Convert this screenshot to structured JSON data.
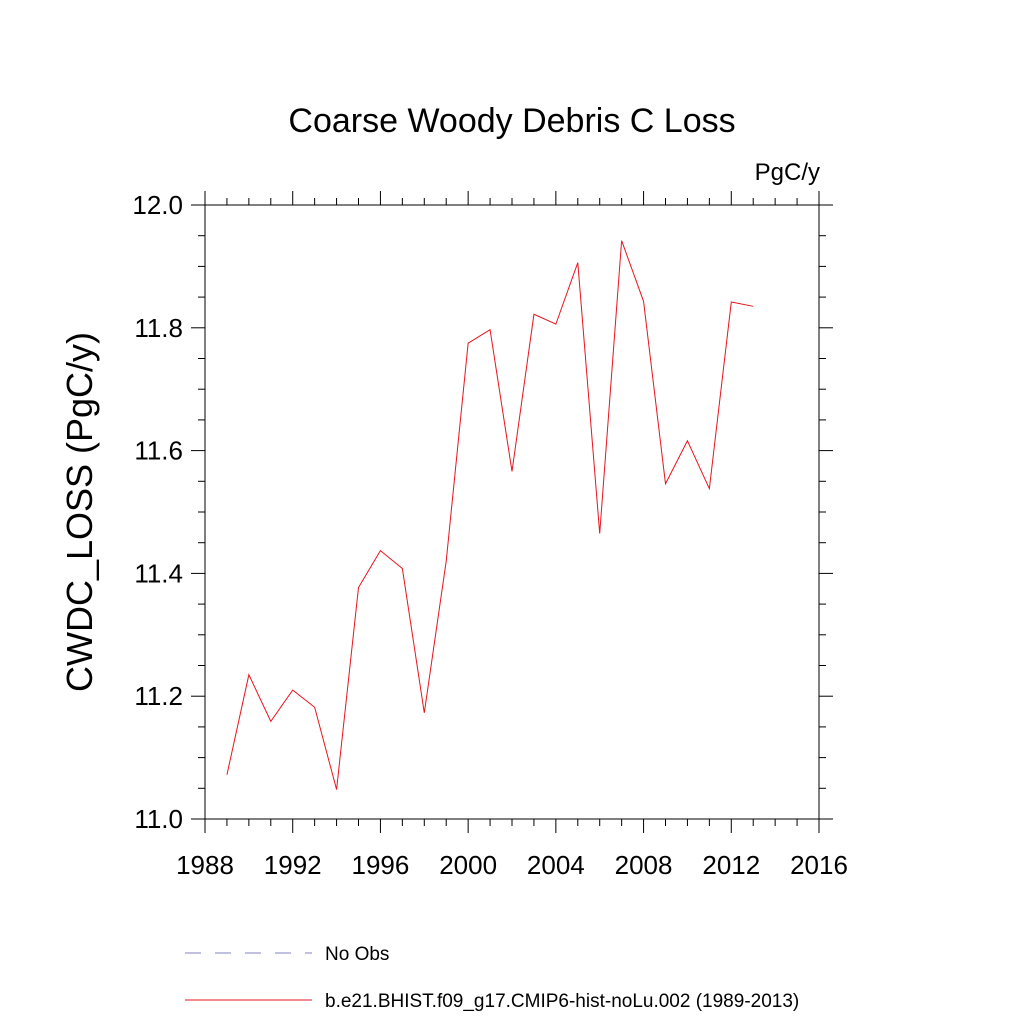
{
  "chart_data": {
    "type": "line",
    "title": "Coarse Woody Debris C Loss",
    "units": "PgC/y",
    "xlabel": "",
    "ylabel": "CWDC_LOSS  (PgC/y)",
    "xlim": [
      1988,
      2016
    ],
    "ylim": [
      11.0,
      12.0
    ],
    "xticks": [
      1988,
      1992,
      1996,
      2000,
      2004,
      2008,
      2012,
      2016
    ],
    "yticks": [
      "11.0",
      "11.2",
      "11.4",
      "11.6",
      "11.8",
      "12.0"
    ],
    "series": [
      {
        "name": "b.e21.BHIST.f09_g17.CMIP6-hist-noLu.002 (1989-2013)",
        "color": "#e8141e",
        "x": [
          1989,
          1990,
          1991,
          1992,
          1993,
          1994,
          1995,
          1996,
          1997,
          1998,
          1999,
          2000,
          2001,
          2002,
          2003,
          2004,
          2005,
          2006,
          2007,
          2008,
          2009,
          2010,
          2011,
          2012,
          2013
        ],
        "y": [
          11.072,
          11.235,
          11.159,
          11.21,
          11.182,
          11.048,
          11.377,
          11.437,
          11.408,
          11.173,
          11.42,
          11.775,
          11.797,
          11.566,
          11.822,
          11.806,
          11.906,
          11.465,
          11.942,
          11.843,
          11.546,
          11.616,
          11.538,
          11.842,
          11.835
        ]
      }
    ],
    "legend": [
      {
        "label": "No Obs",
        "style": "dashed",
        "color": "#8080c0"
      },
      {
        "label": "b.e21.BHIST.f09_g17.CMIP6-hist-noLu.002 (1989-2013)",
        "style": "solid",
        "color": "#e8141e"
      }
    ]
  }
}
